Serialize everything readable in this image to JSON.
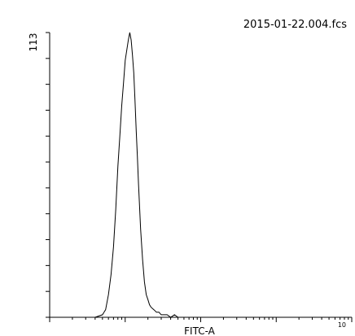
{
  "chart_data": {
    "type": "line",
    "title": "2015-01-22.004.fcs",
    "xlabel": "FITC-A",
    "ylabel": "",
    "x_scale": "log",
    "xlim": [
      1,
      10000
    ],
    "ylim": [
      0,
      113
    ],
    "y_tick_label": "113",
    "x_tick_label_right": "10",
    "grid": false,
    "series": [
      {
        "name": "",
        "color": "#000000",
        "x": [
          4,
          5,
          5.5,
          6,
          6.5,
          7,
          7.5,
          8,
          8.5,
          9,
          9.5,
          10,
          10.5,
          11,
          11.5,
          12,
          12.5,
          13,
          13.5,
          14,
          14.5,
          15,
          15.5,
          16,
          17,
          18,
          19,
          20,
          21,
          22,
          24,
          26,
          28,
          30,
          33,
          36,
          40,
          45,
          50,
          55,
          60,
          70,
          80
        ],
        "y": [
          0,
          1,
          3,
          9,
          17,
          28,
          43,
          60,
          72,
          84,
          93,
          102,
          106,
          110,
          113,
          110,
          104,
          97,
          86,
          74,
          64,
          53,
          44,
          35,
          23,
          14,
          9,
          7,
          5,
          4,
          3,
          2,
          2,
          1,
          1,
          1,
          0,
          1,
          0,
          0,
          0,
          0,
          0
        ]
      }
    ]
  }
}
